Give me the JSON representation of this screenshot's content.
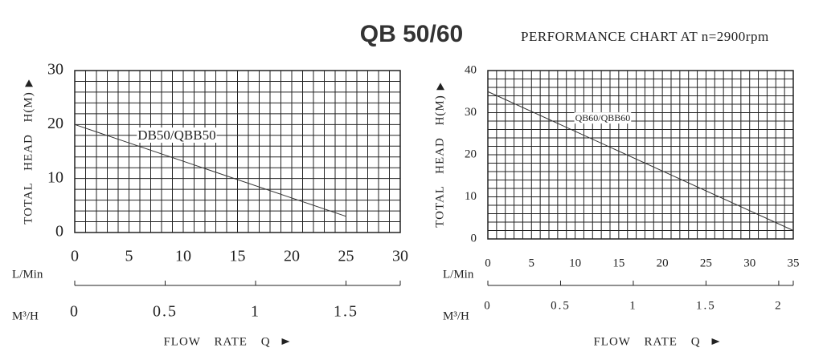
{
  "title": "QB 50/60",
  "subtitle": "PERFORMANCE CHART AT n=2900rpm",
  "chart_data": [
    {
      "type": "line",
      "y_label": "TOTAL HEAD H(M)",
      "x_label": "FLOW RATE Q",
      "x_unit_label": "L/Min",
      "x2_unit_label": "M³/H",
      "x": [
        0,
        25
      ],
      "series": [
        {
          "name": "DB50/QBB50",
          "color": "#333333",
          "values": [
            20,
            3
          ]
        }
      ],
      "xlim": [
        0,
        30
      ],
      "xticks": [
        0,
        5,
        10,
        15,
        20,
        25,
        30
      ],
      "ylim": [
        0,
        30
      ],
      "yticks": [
        0,
        10,
        20,
        30
      ],
      "x2lim": [
        0,
        1.8
      ],
      "x2ticks": [
        0,
        0.5,
        1,
        1.5
      ],
      "grid": {
        "x_step": 1,
        "y_step": 2
      }
    },
    {
      "type": "line",
      "y_label": "TOTAL HEAD H(M)",
      "x_label": "FLOW RATE Q",
      "x_unit_label": "L/Min",
      "x2_unit_label": "M³/H",
      "x": [
        0,
        35
      ],
      "series": [
        {
          "name": "QB60/QBB60",
          "color": "#333333",
          "values": [
            35,
            2
          ]
        }
      ],
      "xlim": [
        0,
        35
      ],
      "xticks": [
        0,
        5,
        10,
        15,
        20,
        25,
        30,
        35
      ],
      "ylim": [
        0,
        40
      ],
      "yticks": [
        0,
        10,
        20,
        30,
        40
      ],
      "x2lim": [
        0,
        2.1
      ],
      "x2ticks": [
        0,
        0.5,
        1,
        1.5,
        2
      ],
      "grid": {
        "x_step": 1,
        "y_step": 2
      }
    }
  ]
}
